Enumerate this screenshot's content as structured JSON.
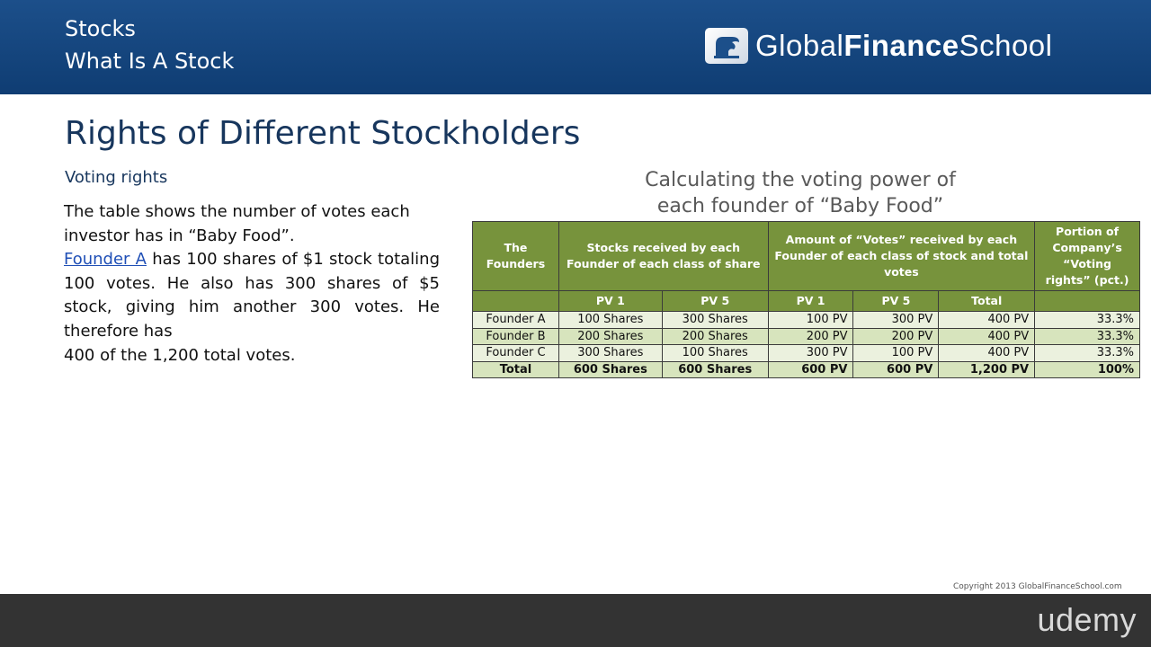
{
  "header": {
    "line1": "Stocks",
    "line2": "What Is A Stock",
    "logo_light": "Global",
    "logo_bold": "Finance",
    "logo_end": "School",
    "color": "#0f3d73"
  },
  "slide": {
    "title": "Rights of Different Stockholders",
    "subtitle": "Voting rights",
    "para_line1": "The table shows the number of votes each",
    "para_line2": "investor has in “Baby Food”.",
    "link_text": "Founder A",
    "para_after_link": " has 100 shares of $1 stock totaling 100 votes. He also has 300 shares of $5 stock, giving him another 300 votes. He therefore has",
    "para_last": "400 of the 1,200 total votes."
  },
  "table": {
    "caption_line1": "Calculating the voting power of",
    "caption_line2": "each founder of “Baby Food”",
    "header": {
      "founders": "The Founders",
      "stocks": "Stocks received by each Founder of each class of share",
      "votes": "Amount of “Votes” received by each Founder of each class of stock and total votes",
      "portion": "Portion of Company’s “Voting rights” (pct.)"
    },
    "subheader": [
      "PV 1",
      "PV 5",
      "PV 1",
      "PV 5",
      "Total"
    ],
    "rows": [
      [
        "Founder A",
        "100 Shares",
        "300 Shares",
        "100 PV",
        "300 PV",
        "400 PV",
        "33.3%"
      ],
      [
        "Founder B",
        "200 Shares",
        "200 Shares",
        "200 PV",
        "200 PV",
        "400 PV",
        "33.3%"
      ],
      [
        "Founder C",
        "300 Shares",
        "100 Shares",
        "300 PV",
        "100 PV",
        "400 PV",
        "33.3%"
      ]
    ],
    "total": [
      "Total",
      "600 Shares",
      "600 Shares",
      "600 PV",
      "600 PV",
      "1,200 PV",
      "100%"
    ],
    "header_color": "#77933c"
  },
  "footer": {
    "copyright": "Copyright 2013 GlobalFinanceSchool.com",
    "brand": "udemy"
  }
}
